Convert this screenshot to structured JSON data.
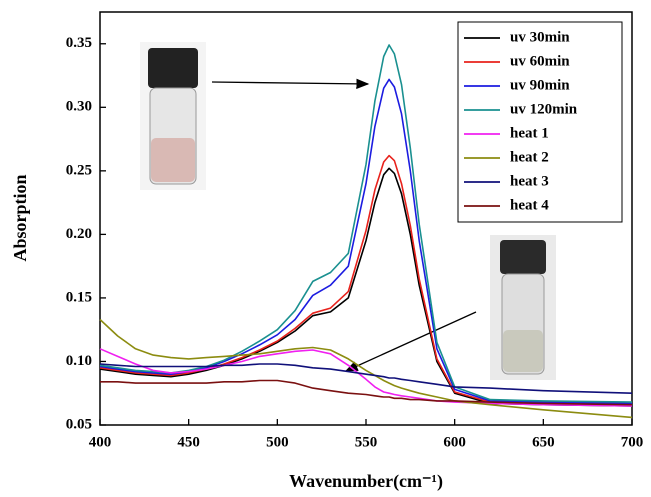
{
  "chart_data": {
    "type": "line",
    "x_label": "Wavenumber(cm⁻¹)",
    "y_label": "Absorption",
    "x": [
      400,
      410,
      420,
      430,
      440,
      450,
      460,
      470,
      480,
      490,
      500,
      510,
      520,
      530,
      540,
      550,
      555,
      560,
      563,
      566,
      570,
      575,
      580,
      590,
      600,
      620,
      650,
      700
    ],
    "series": [
      {
        "name": "uv 30min",
        "color": "#000000",
        "values": [
          0.094,
          0.092,
          0.09,
          0.089,
          0.088,
          0.09,
          0.093,
          0.097,
          0.102,
          0.108,
          0.115,
          0.124,
          0.136,
          0.139,
          0.15,
          0.195,
          0.225,
          0.247,
          0.252,
          0.248,
          0.232,
          0.2,
          0.16,
          0.1,
          0.075,
          0.067,
          0.066,
          0.065
        ]
      },
      {
        "name": "uv 60min",
        "color": "#e8221c",
        "values": [
          0.095,
          0.093,
          0.091,
          0.09,
          0.089,
          0.091,
          0.094,
          0.098,
          0.103,
          0.109,
          0.116,
          0.126,
          0.138,
          0.142,
          0.155,
          0.203,
          0.235,
          0.257,
          0.262,
          0.258,
          0.24,
          0.207,
          0.165,
          0.102,
          0.076,
          0.068,
          0.067,
          0.066
        ]
      },
      {
        "name": "uv 90min",
        "color": "#1c1ce0",
        "values": [
          0.096,
          0.094,
          0.092,
          0.091,
          0.09,
          0.092,
          0.095,
          0.1,
          0.106,
          0.113,
          0.121,
          0.133,
          0.152,
          0.16,
          0.175,
          0.24,
          0.285,
          0.315,
          0.322,
          0.316,
          0.295,
          0.25,
          0.195,
          0.11,
          0.078,
          0.069,
          0.068,
          0.067
        ]
      },
      {
        "name": "uv 120min",
        "color": "#1a9090",
        "values": [
          0.097,
          0.095,
          0.093,
          0.092,
          0.091,
          0.093,
          0.096,
          0.101,
          0.108,
          0.116,
          0.125,
          0.14,
          0.163,
          0.17,
          0.185,
          0.255,
          0.305,
          0.34,
          0.349,
          0.342,
          0.318,
          0.268,
          0.208,
          0.115,
          0.08,
          0.07,
          0.069,
          0.068
        ]
      },
      {
        "name": "heat 1",
        "color": "#f020f0",
        "values": [
          0.11,
          0.104,
          0.098,
          0.093,
          0.091,
          0.092,
          0.094,
          0.097,
          0.1,
          0.104,
          0.106,
          0.108,
          0.109,
          0.106,
          0.097,
          0.086,
          0.08,
          0.076,
          0.075,
          0.074,
          0.073,
          0.072,
          0.071,
          0.069,
          0.068,
          0.067,
          0.066,
          0.065
        ]
      },
      {
        "name": "heat 2",
        "color": "#8c8c10",
        "values": [
          0.133,
          0.12,
          0.11,
          0.105,
          0.103,
          0.102,
          0.103,
          0.104,
          0.105,
          0.106,
          0.108,
          0.11,
          0.111,
          0.109,
          0.102,
          0.093,
          0.089,
          0.085,
          0.083,
          0.081,
          0.079,
          0.077,
          0.075,
          0.072,
          0.069,
          0.066,
          0.062,
          0.056
        ]
      },
      {
        "name": "heat 3",
        "color": "#10107a",
        "values": [
          0.098,
          0.097,
          0.096,
          0.096,
          0.096,
          0.096,
          0.096,
          0.097,
          0.097,
          0.098,
          0.098,
          0.097,
          0.095,
          0.094,
          0.092,
          0.09,
          0.089,
          0.088,
          0.087,
          0.087,
          0.086,
          0.085,
          0.084,
          0.082,
          0.08,
          0.079,
          0.077,
          0.075
        ]
      },
      {
        "name": "heat 4",
        "color": "#7a1010",
        "values": [
          0.084,
          0.084,
          0.083,
          0.083,
          0.083,
          0.083,
          0.083,
          0.084,
          0.084,
          0.085,
          0.085,
          0.083,
          0.079,
          0.077,
          0.075,
          0.074,
          0.073,
          0.072,
          0.072,
          0.071,
          0.071,
          0.07,
          0.07,
          0.069,
          0.069,
          0.068,
          0.067,
          0.066
        ]
      }
    ],
    "xlim": [
      400,
      700
    ],
    "xticks": [
      400,
      450,
      500,
      550,
      600,
      650,
      700
    ],
    "ylim": [
      0.05,
      0.375
    ],
    "yticks": [
      0.05,
      {
        "value": 0.1,
        "label": "0.10"
      },
      0.15,
      {
        "value": 0.2,
        "label": "0.20"
      },
      0.25,
      {
        "value": 0.3,
        "label": "0.30"
      },
      0.35
    ],
    "legend": "upper right"
  }
}
